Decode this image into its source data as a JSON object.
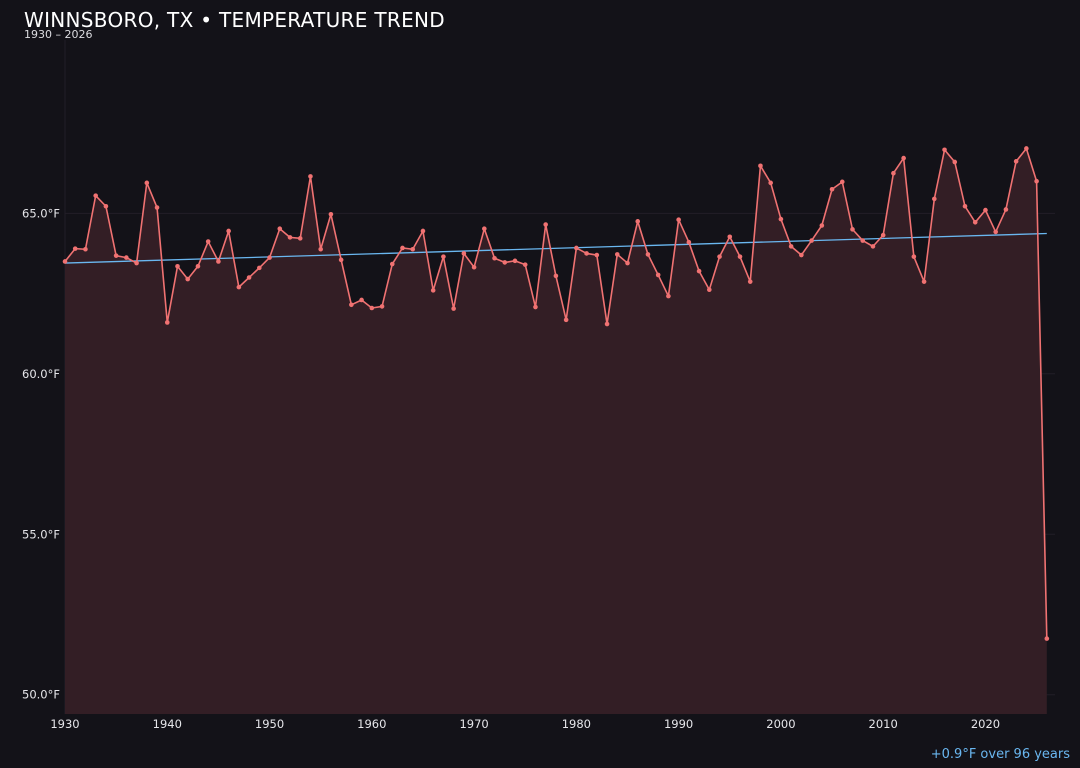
{
  "header": {
    "title": "WINNSBORO, TX • TEMPERATURE TREND",
    "subtitle": "1930 – 2026"
  },
  "footnote": "+0.9°F over 96 years",
  "colors": {
    "background": "#131218",
    "series_line": "#f07272",
    "series_fill": "#331e25",
    "trend_line": "#6ab7f0",
    "grid": "#221e27",
    "tick_text": "#e6e6ea"
  },
  "chart_data": {
    "type": "line",
    "title": "WINNSBORO, TX • TEMPERATURE TREND",
    "subtitle": "1930 – 2026",
    "xlabel": "",
    "ylabel": "",
    "xlim": [
      1930,
      2026.8
    ],
    "ylim": [
      49.4,
      70.4
    ],
    "x_ticks": [
      1930,
      1940,
      1950,
      1960,
      1970,
      1980,
      1990,
      2000,
      2010,
      2020
    ],
    "y_ticks": [
      50,
      55,
      60,
      65
    ],
    "y_tick_labels": [
      "50.0°F",
      "55.0°F",
      "60.0°F",
      "65.0°F"
    ],
    "grid": "horizontal",
    "series": [
      {
        "type": "line-area",
        "x": [
          1930,
          1931,
          1932,
          1933,
          1934,
          1935,
          1936,
          1937,
          1938,
          1939,
          1940,
          1941,
          1942,
          1943,
          1944,
          1945,
          1946,
          1947,
          1948,
          1949,
          1950,
          1951,
          1952,
          1953,
          1954,
          1955,
          1956,
          1957,
          1958,
          1959,
          1960,
          1961,
          1962,
          1963,
          1964,
          1965,
          1966,
          1967,
          1968,
          1969,
          1970,
          1971,
          1972,
          1973,
          1974,
          1975,
          1976,
          1977,
          1978,
          1979,
          1980,
          1981,
          1982,
          1983,
          1984,
          1985,
          1986,
          1987,
          1988,
          1989,
          1990,
          1991,
          1992,
          1993,
          1994,
          1995,
          1996,
          1997,
          1998,
          1999,
          2000,
          2001,
          2002,
          2003,
          2004,
          2005,
          2006,
          2007,
          2008,
          2009,
          2010,
          2011,
          2012,
          2013,
          2014,
          2015,
          2016,
          2017,
          2018,
          2019,
          2020,
          2021,
          2022,
          2023,
          2024,
          2025,
          2026
        ],
        "values": [
          63.5,
          63.9,
          63.88,
          65.55,
          65.22,
          63.68,
          63.62,
          63.45,
          65.95,
          65.18,
          61.6,
          63.35,
          62.95,
          63.35,
          64.12,
          63.5,
          64.45,
          62.7,
          63.0,
          63.3,
          63.62,
          64.52,
          64.25,
          64.22,
          66.15,
          63.88,
          64.97,
          63.55,
          62.15,
          62.3,
          62.05,
          62.1,
          63.42,
          63.92,
          63.88,
          64.45,
          62.6,
          63.65,
          62.03,
          63.75,
          63.32,
          64.52,
          63.6,
          63.47,
          63.52,
          63.4,
          62.08,
          64.65,
          63.05,
          61.68,
          63.92,
          63.75,
          63.7,
          61.55,
          63.72,
          63.45,
          64.75,
          63.72,
          63.08,
          62.42,
          64.8,
          64.1,
          63.2,
          62.62,
          63.65,
          64.27,
          63.65,
          62.87,
          66.48,
          65.95,
          64.82,
          63.97,
          63.7,
          64.15,
          64.62,
          65.75,
          65.98,
          64.5,
          64.15,
          63.97,
          64.32,
          66.25,
          66.72,
          63.65,
          62.87,
          65.45,
          66.98,
          66.6,
          65.22,
          64.72,
          65.1,
          64.42,
          65.12,
          66.62,
          67.02,
          66.0,
          51.75
        ]
      },
      {
        "type": "trend",
        "x": [
          1930,
          2026
        ],
        "values": [
          63.45,
          64.37
        ]
      }
    ]
  }
}
